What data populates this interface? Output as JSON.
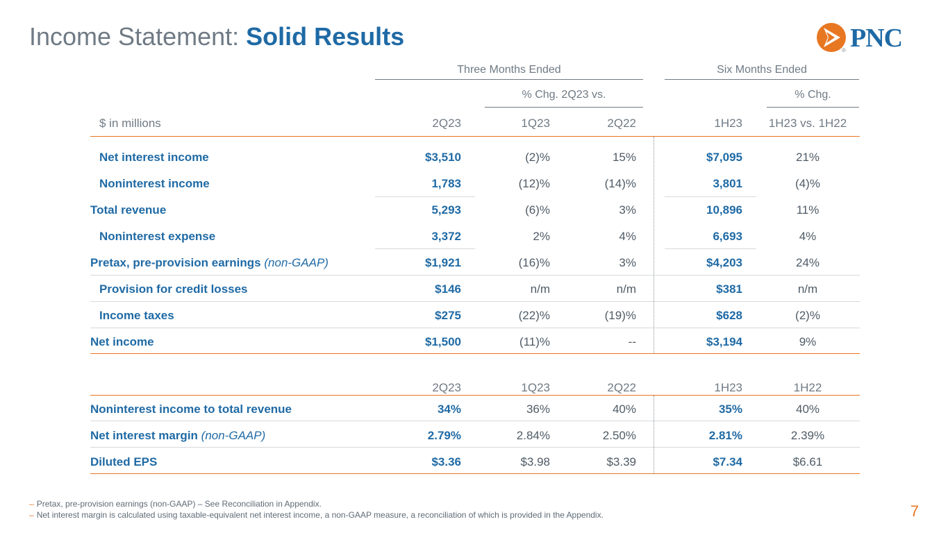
{
  "title": {
    "plain": "Income Statement: ",
    "strong": "Solid Results"
  },
  "logo": {
    "text": "PNC",
    "reg": "®",
    "brand_orange": "#e87722",
    "brand_blue": "#1f6aa5"
  },
  "header": {
    "group_three": "Three Months Ended",
    "group_six": "Six Months Ended",
    "chg_three": "% Chg. 2Q23 vs.",
    "chg_six": "% Chg.",
    "units": "$ in millions",
    "cols": [
      "2Q23",
      "1Q23",
      "2Q22",
      "1H23",
      "1H23 vs. 1H22"
    ]
  },
  "rows": [
    {
      "label": "Net interest income",
      "values": [
        "$3,510",
        "(2)%",
        "15%",
        "$7,095",
        "21%"
      ]
    },
    {
      "label": "Noninterest income",
      "values": [
        "1,783",
        "(12)%",
        "(14)%",
        "3,801",
        "(4)%"
      ]
    },
    {
      "label": "Total revenue",
      "values": [
        "5,293",
        "(6)%",
        "3%",
        "10,896",
        "11%"
      ]
    },
    {
      "label": "Noninterest expense",
      "values": [
        "3,372",
        "2%",
        "4%",
        "6,693",
        "4%"
      ]
    },
    {
      "label": "Pretax, pre-provision earnings",
      "label_note": "(non-GAAP)",
      "values": [
        "$1,921",
        "(16)%",
        "3%",
        "$4,203",
        "24%"
      ]
    },
    {
      "label": "Provision for credit losses",
      "values": [
        "$146",
        "n/m",
        "n/m",
        "$381",
        "n/m"
      ]
    },
    {
      "label": "Income taxes",
      "values": [
        "$275",
        "(22)%",
        "(19)%",
        "$628",
        "(2)%"
      ]
    },
    {
      "label": "Net income",
      "values": [
        "$1,500",
        "(11)%",
        "--",
        "$3,194",
        "9%"
      ]
    }
  ],
  "ratios_header": [
    "2Q23",
    "1Q23",
    "2Q22",
    "1H23",
    "1H22"
  ],
  "ratios": [
    {
      "label": "Noninterest income to total revenue",
      "values": [
        "34%",
        "36%",
        "40%",
        "35%",
        "40%"
      ]
    },
    {
      "label": "Net interest margin",
      "label_note": "(non-GAAP)",
      "values": [
        "2.79%",
        "2.84%",
        "2.50%",
        "2.81%",
        "2.39%"
      ]
    },
    {
      "label": "Diluted EPS",
      "values": [
        "$3.36",
        "$3.98",
        "$3.39",
        "$7.34",
        "$6.61"
      ]
    }
  ],
  "footnotes": [
    "Pretax, pre-provision earnings (non-GAAP) – See Reconciliation in Appendix.",
    "Net interest margin is calculated using taxable-equivalent net interest income, a non-GAAP measure, a reconciliation of which is provided in the Appendix."
  ],
  "footnote_bullet": "–",
  "page_number": "7"
}
